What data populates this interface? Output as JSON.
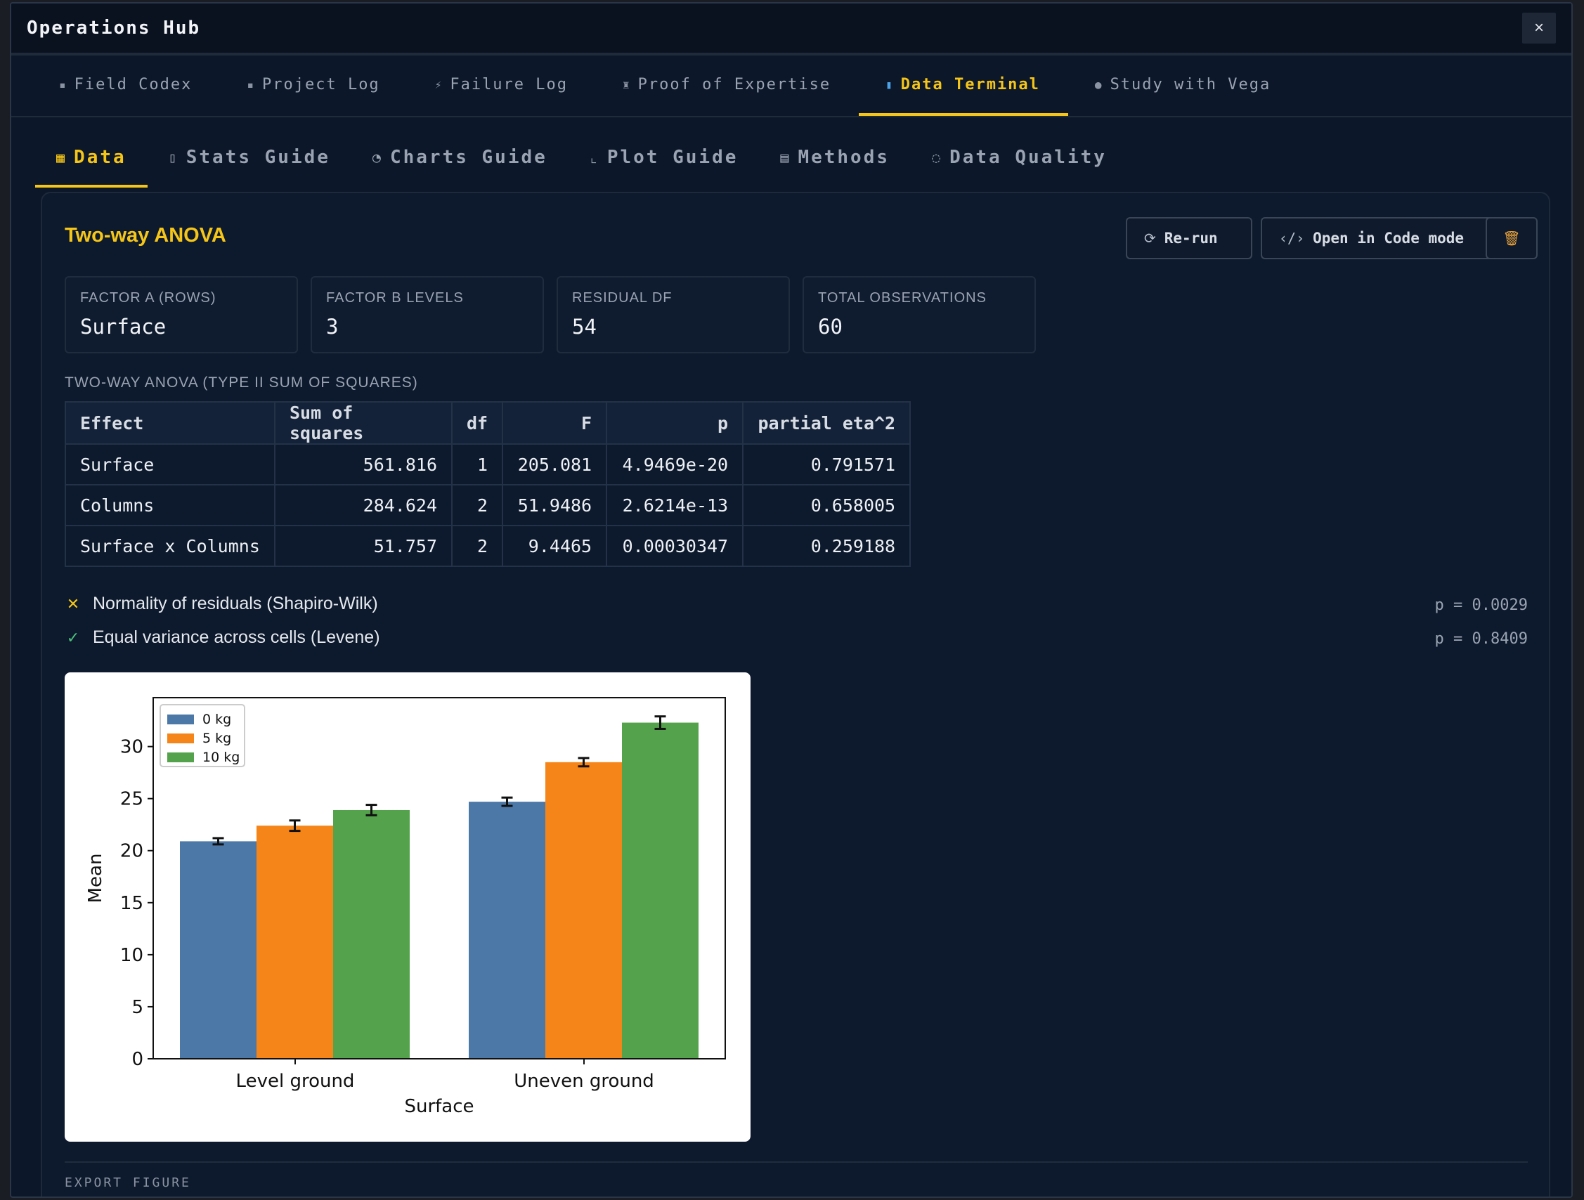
{
  "window": {
    "title": "Operations Hub",
    "close": "×"
  },
  "main_tabs": [
    {
      "icon": "▪",
      "label": "Field Codex"
    },
    {
      "icon": "▪",
      "label": "Project Log"
    },
    {
      "icon": "⚡",
      "label": "Failure Log"
    },
    {
      "icon": "♜",
      "label": "Proof of Expertise"
    },
    {
      "icon": "▮",
      "label": "Data Terminal"
    },
    {
      "icon": "●",
      "label": "Study with Vega"
    }
  ],
  "sub_tabs": [
    {
      "icon": "▦",
      "label": "Data"
    },
    {
      "icon": "▯",
      "label": "Stats Guide"
    },
    {
      "icon": "◔",
      "label": "Charts Guide"
    },
    {
      "icon": "⌞",
      "label": "Plot Guide"
    },
    {
      "icon": "▤",
      "label": "Methods"
    },
    {
      "icon": "◌",
      "label": "Data Quality"
    }
  ],
  "panel": {
    "title": "Two-way ANOVA",
    "buttons": {
      "rerun": {
        "icon": "⟳",
        "label": "Re-run"
      },
      "open_code": {
        "icon": "‹/›",
        "label": "Open in Code mode"
      },
      "delete": {
        "icon": "🗑",
        "label": ""
      }
    },
    "stats": [
      {
        "label": "FACTOR A (ROWS)",
        "value": "Surface"
      },
      {
        "label": "FACTOR B LEVELS",
        "value": "3"
      },
      {
        "label": "RESIDUAL DF",
        "value": "54"
      },
      {
        "label": "TOTAL OBSERVATIONS",
        "value": "60"
      }
    ],
    "table_caption": "TWO-WAY ANOVA (TYPE II SUM OF SQUARES)",
    "table": {
      "headers": [
        "Effect",
        "Sum of squares",
        "df",
        "F",
        "p",
        "partial eta^2"
      ],
      "rows": [
        [
          "Surface",
          "561.816",
          "1",
          "205.081",
          "4.9469e-20",
          "0.791571"
        ],
        [
          "Columns",
          "284.624",
          "2",
          "51.9486",
          "2.6214e-13",
          "0.658005"
        ],
        [
          "Surface x Columns",
          "51.757",
          "2",
          "9.4465",
          "0.00030347",
          "0.259188"
        ]
      ]
    },
    "checks": [
      {
        "status": "fail",
        "mark": "✕",
        "color": "#f5c518",
        "label": "Normality of residuals (Shapiro-Wilk)",
        "p": "p = 0.0029"
      },
      {
        "status": "pass",
        "mark": "✓",
        "color": "#4cc07a",
        "label": "Equal variance across cells (Levene)",
        "p": "p = 0.8409"
      }
    ],
    "export_caption": "EXPORT FIGURE"
  },
  "chart_data": {
    "type": "bar",
    "title": "",
    "xlabel": "Surface",
    "ylabel": "Mean",
    "categories": [
      "Level ground",
      "Uneven ground"
    ],
    "ylim": [
      0,
      34.7
    ],
    "yticks": [
      0,
      5,
      10,
      15,
      20,
      25,
      30
    ],
    "legend_position": "top-left",
    "series": [
      {
        "name": "0 kg",
        "color": "#4c78a8",
        "values": [
          20.9,
          24.7
        ],
        "errors": [
          0.3,
          0.4
        ]
      },
      {
        "name": "5 kg",
        "color": "#f58518",
        "values": [
          22.4,
          28.5
        ],
        "errors": [
          0.5,
          0.4
        ]
      },
      {
        "name": "10 kg",
        "color": "#54a24b",
        "values": [
          23.9,
          32.3
        ],
        "errors": [
          0.5,
          0.6
        ]
      }
    ]
  }
}
